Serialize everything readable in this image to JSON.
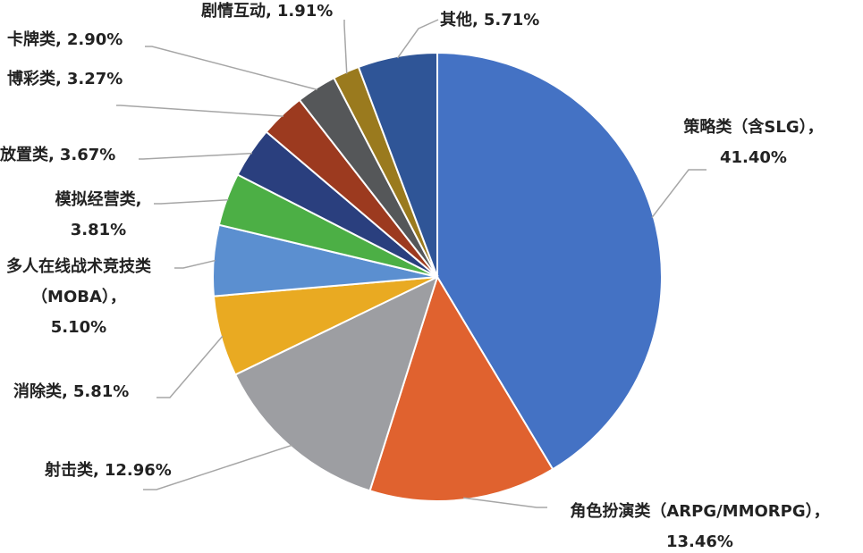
{
  "chart_data": {
    "type": "pie",
    "categories": [
      "策略类（含SLG），",
      "角色扮演类（ARPG/MMORPG），",
      "射击类,",
      "消除类,",
      "多人在线战术竞技类（MOBA），",
      "模拟经营类,",
      "放置类,",
      "博彩类,",
      "卡牌类,",
      "剧情互动,",
      "其他,"
    ],
    "values": [
      41.4,
      13.46,
      12.96,
      5.81,
      5.1,
      3.81,
      3.67,
      3.27,
      2.9,
      1.91,
      5.71
    ],
    "value_labels": [
      "41.40%",
      "13.46%",
      "12.96%",
      "5.81%",
      "5.10%",
      "3.81%",
      "3.67%",
      "3.27%",
      "2.90%",
      "1.91%",
      "5.71%"
    ],
    "colors": [
      "#4472c4",
      "#e0622f",
      "#9d9ea2",
      "#e9aa22",
      "#5b8fd0",
      "#4caf45",
      "#2a3f7e",
      "#9c3a1f",
      "#555759",
      "#9a7a1e",
      "#2f5597"
    ]
  }
}
